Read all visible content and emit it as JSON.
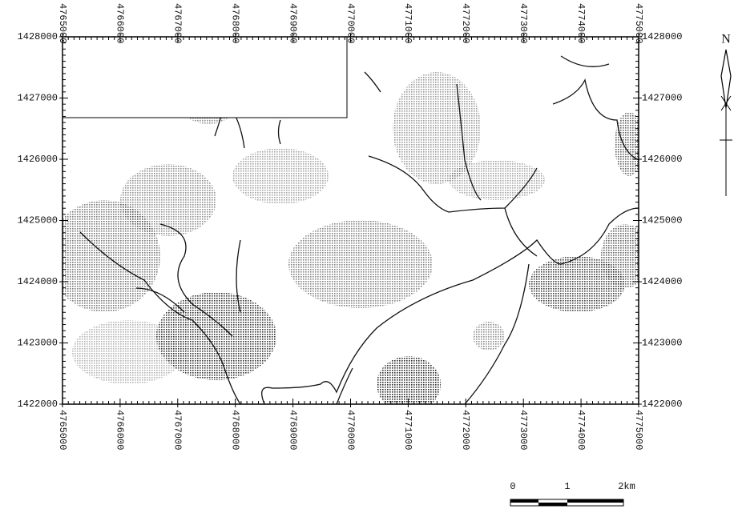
{
  "map": {
    "x_ticks": [
      4765000,
      4766000,
      4767000,
      4768000,
      4769000,
      4770000,
      4771000,
      4772000,
      4773000,
      4774000,
      4775000
    ],
    "y_ticks": [
      1428000,
      1427000,
      1426000,
      1425000,
      1424000,
      1423000,
      1422000
    ],
    "scale_bar": {
      "labels": [
        "0",
        "1",
        "2km"
      ]
    },
    "north_label": "N"
  }
}
